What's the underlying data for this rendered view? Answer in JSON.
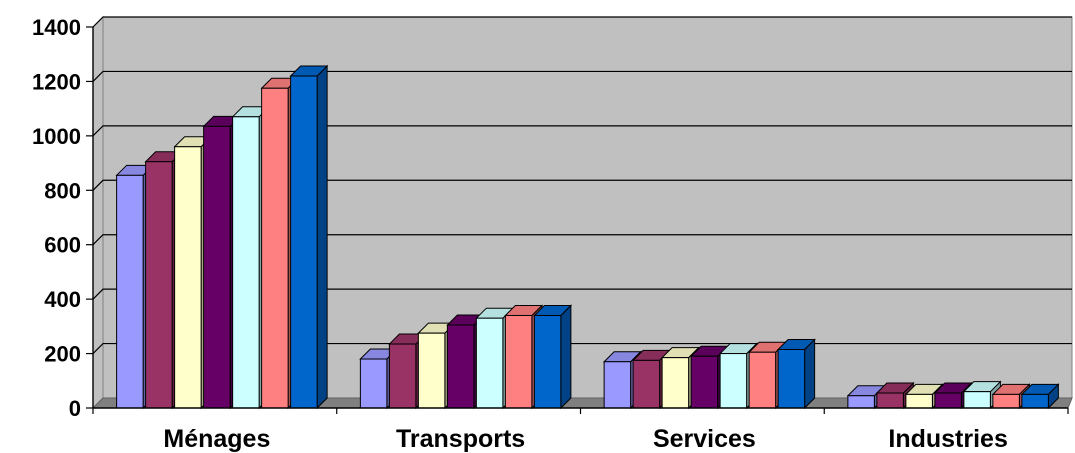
{
  "chart_data": {
    "type": "bar",
    "style": "3d-clustered-column",
    "categories": [
      "Ménages",
      "Transports",
      "Services",
      "Industries"
    ],
    "series": [
      {
        "color": "#9999FF",
        "values": [
          855,
          180,
          170,
          45
        ]
      },
      {
        "color": "#993366",
        "values": [
          905,
          235,
          175,
          55
        ]
      },
      {
        "color": "#FFFFCC",
        "values": [
          960,
          275,
          185,
          50
        ]
      },
      {
        "color": "#660066",
        "values": [
          1035,
          305,
          190,
          55
        ]
      },
      {
        "color": "#CCFFFF",
        "values": [
          1070,
          330,
          200,
          60
        ]
      },
      {
        "color": "#FF8080",
        "values": [
          1175,
          340,
          205,
          50
        ]
      },
      {
        "color": "#0066CC",
        "values": [
          1220,
          340,
          215,
          50
        ]
      }
    ],
    "yticks": [
      "0",
      "200",
      "400",
      "600",
      "800",
      "1000",
      "1200",
      "1400"
    ],
    "ylim": [
      0,
      1400
    ],
    "grid": true,
    "wall_color": "#C0C0C0",
    "floor_color": "#808080",
    "legend": "none"
  }
}
